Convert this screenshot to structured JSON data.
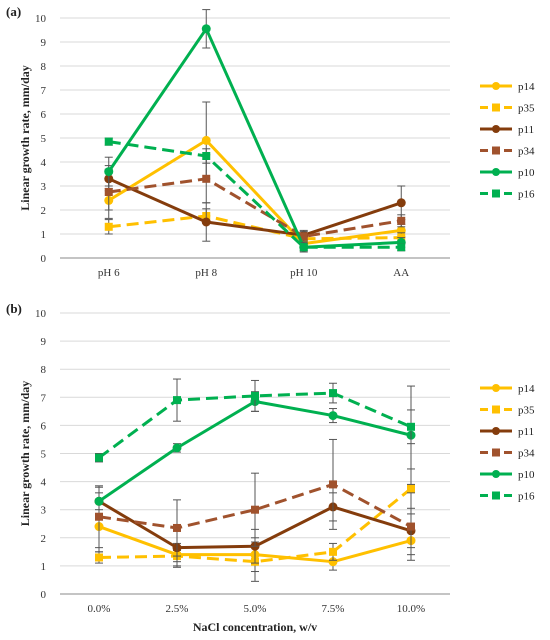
{
  "chart_data": [
    {
      "type": "line",
      "panel_label": "(a)",
      "ylabel": "Linear growth rate, mm/day",
      "xlabel": "",
      "categories": [
        "pH 6",
        "pH 8",
        "pH 10",
        "AA"
      ],
      "ylim": [
        0,
        10
      ],
      "yticks": [
        "0",
        "1",
        "2",
        "3",
        "4",
        "5",
        "6",
        "7",
        "8",
        "9",
        "10"
      ],
      "grid": true,
      "legend_position": "right",
      "series": [
        {
          "name": "p14",
          "color": "#FFC000",
          "dash": false,
          "marker": "circle",
          "values": [
            2.4,
            4.9,
            0.6,
            1.15
          ],
          "err": [
            0.4,
            1.6,
            0.2,
            0.25
          ]
        },
        {
          "name": "p35",
          "color": "#FFC000",
          "dash": true,
          "marker": "square",
          "values": [
            1.3,
            1.75,
            0.8,
            0.85
          ],
          "err": [
            0.3,
            0.3,
            0.2,
            0.2
          ]
        },
        {
          "name": "p11",
          "color": "#843C0C",
          "dash": false,
          "marker": "circle",
          "values": [
            3.3,
            1.5,
            0.95,
            2.3
          ],
          "err": [
            0.4,
            0.8,
            0.2,
            0.7
          ]
        },
        {
          "name": "p34",
          "color": "#A0522D",
          "dash": true,
          "marker": "square",
          "values": [
            2.75,
            3.3,
            0.9,
            1.55
          ],
          "err": [
            1.1,
            1.0,
            0.2,
            0.25
          ]
        },
        {
          "name": "p10",
          "color": "#00B050",
          "dash": false,
          "marker": "circle",
          "values": [
            3.6,
            9.55,
            0.45,
            0.65
          ],
          "err": [
            0.6,
            0.8,
            0.15,
            0.2
          ]
        },
        {
          "name": "p16",
          "color": "#00B050",
          "dash": true,
          "marker": "square",
          "values": [
            4.85,
            4.25,
            0.45,
            0.45
          ],
          "err": [
            0.15,
            0.3,
            0.2,
            0.15
          ]
        }
      ]
    },
    {
      "type": "line",
      "panel_label": "(b)",
      "ylabel": "Linear growth rate, mm/day",
      "xlabel": "NaCl concentration, w/v",
      "categories": [
        "0.0%",
        "2.5%",
        "5.0%",
        "7.5%",
        "10.0%"
      ],
      "ylim": [
        0,
        10
      ],
      "yticks": [
        "0",
        "1",
        "2",
        "3",
        "4",
        "5",
        "6",
        "7",
        "8",
        "9",
        "10"
      ],
      "grid": true,
      "legend_position": "right",
      "series": [
        {
          "name": "p14",
          "color": "#FFC000",
          "dash": false,
          "marker": "circle",
          "values": [
            2.4,
            1.4,
            1.4,
            1.15,
            1.9
          ],
          "err": [
            0.9,
            0.4,
            0.6,
            0.3,
            0.5
          ]
        },
        {
          "name": "p35",
          "color": "#FFC000",
          "dash": true,
          "marker": "square",
          "values": [
            1.3,
            1.35,
            1.15,
            1.5,
            3.75
          ],
          "err": [
            0.2,
            0.2,
            0.7,
            0.3,
            0.7
          ]
        },
        {
          "name": "p11",
          "color": "#843C0C",
          "dash": false,
          "marker": "circle",
          "values": [
            3.3,
            1.65,
            1.7,
            3.1,
            2.25
          ],
          "err": [
            0.5,
            0.7,
            0.6,
            0.5,
            0.6
          ]
        },
        {
          "name": "p34",
          "color": "#A0522D",
          "dash": true,
          "marker": "square",
          "values": [
            2.75,
            2.35,
            3.0,
            3.9,
            2.4
          ],
          "err": [
            1.1,
            1.0,
            1.3,
            1.6,
            1.2
          ]
        },
        {
          "name": "p10",
          "color": "#00B050",
          "dash": false,
          "marker": "circle",
          "values": [
            3.3,
            5.2,
            6.85,
            6.35,
            5.65
          ],
          "err": [
            0.3,
            0.15,
            0.35,
            0.25,
            1.75
          ]
        },
        {
          "name": "p16",
          "color": "#00B050",
          "dash": true,
          "marker": "square",
          "values": [
            4.85,
            6.9,
            7.05,
            7.15,
            5.95
          ],
          "err": [
            0.15,
            0.75,
            0.55,
            0.35,
            0.6
          ]
        }
      ]
    }
  ]
}
